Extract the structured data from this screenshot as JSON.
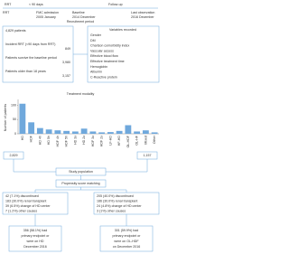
{
  "timeline": {
    "top_labels": [
      "RRT",
      "< 90 days",
      "Follow-up"
    ],
    "bottom_labels": [
      "RRT",
      "FMC admission",
      "Baseline",
      "Last observation"
    ],
    "dates": [
      "2005 January",
      "2014 December",
      "2016 December"
    ],
    "period": "Recruitment period"
  },
  "flow": {
    "steps": [
      {
        "label": "4,829 patients"
      },
      {
        "label": "Incident RRT (<90 days from RRT)",
        "count": "849"
      },
      {
        "label": "Patients survive the baseline period",
        "count": "3,980"
      },
      {
        "label": "Patients older than 18 years",
        "count": "3,157"
      }
    ],
    "variables_title": "Variables recorded",
    "variables": [
      "Gender",
      "DM",
      "Charlson comorbidity index",
      "Vascular access",
      "Effective blood flow",
      "Effective treatment time",
      "Hemoglobin",
      "Albumin",
      "C-Reactive protein"
    ],
    "groups": [
      "2,829",
      "1,157"
    ],
    "study_population": "Study population",
    "matching": "Propensity score matching",
    "left_box": [
      "42 (7.1%) discontinued",
      "183 (30.0%) renal transplant",
      "39 (6.5%) change of HD center",
      "7 (1.2%) other causes"
    ],
    "right_box": [
      "205 (40.0%) discontinued",
      "186 (30.0%) renal transplant",
      "24 (4.8%) change of HD center",
      "3 (1%) other causes"
    ],
    "left_result": [
      "356 (58.1%) had",
      "primary endpoint or",
      "were on HD",
      "December 2016"
    ],
    "right_result": [
      "301 (59.9%) had",
      "primary endpoint or",
      "were on OL-HDF",
      "on December 2016"
    ]
  },
  "chart_data": {
    "type": "bar",
    "title": "Treatment modality",
    "y_label": "Number of patients",
    "categories": [
      "HD",
      "HDF",
      "HD 4h",
      "HD 5h",
      "HDF 4h",
      "HDF 5h",
      "HD 3x",
      "HD 2x",
      "HDF 3x",
      "HDF 2x",
      "LF-HD",
      "HF-HD",
      "OL-HDF",
      "OL-HF",
      "Mixed",
      "Other"
    ],
    "values": [
      105,
      40,
      20,
      15,
      12,
      10,
      8,
      18,
      8,
      5,
      6,
      10,
      30,
      8,
      12,
      5
    ],
    "color": "#6fa8dc",
    "ylim": [
      0,
      120
    ],
    "yticks": [
      0,
      50,
      100
    ]
  }
}
